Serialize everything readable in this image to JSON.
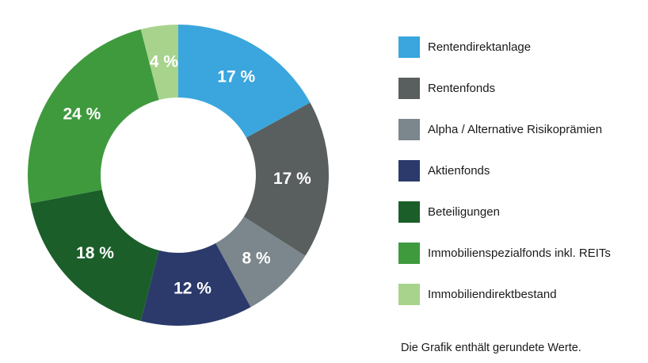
{
  "chart_data": {
    "type": "pie",
    "variant": "donut",
    "categories": [
      "Rentendirektanlage",
      "Rentenfonds",
      "Alpha / Alternative Risikoprämien",
      "Aktienfonds",
      "Beteiligungen",
      "Immobilienspezialfonds inkl. REITs",
      "Immobiliendirektbestand"
    ],
    "values": [
      17,
      17,
      8,
      12,
      18,
      24,
      4
    ],
    "labels": [
      "17 %",
      "17 %",
      "8 %",
      "12 %",
      "18 %",
      "24 %",
      "4 %"
    ],
    "colors": [
      "#3aa6dd",
      "#595f5e",
      "#7b878c",
      "#2b3a6b",
      "#1b5e2a",
      "#3f9a3e",
      "#a8d38d"
    ],
    "legend_position": "right",
    "start_angle": "12 o'clock",
    "direction": "clockwise"
  },
  "footnote": "Die Grafik enthält gerundete Werte."
}
